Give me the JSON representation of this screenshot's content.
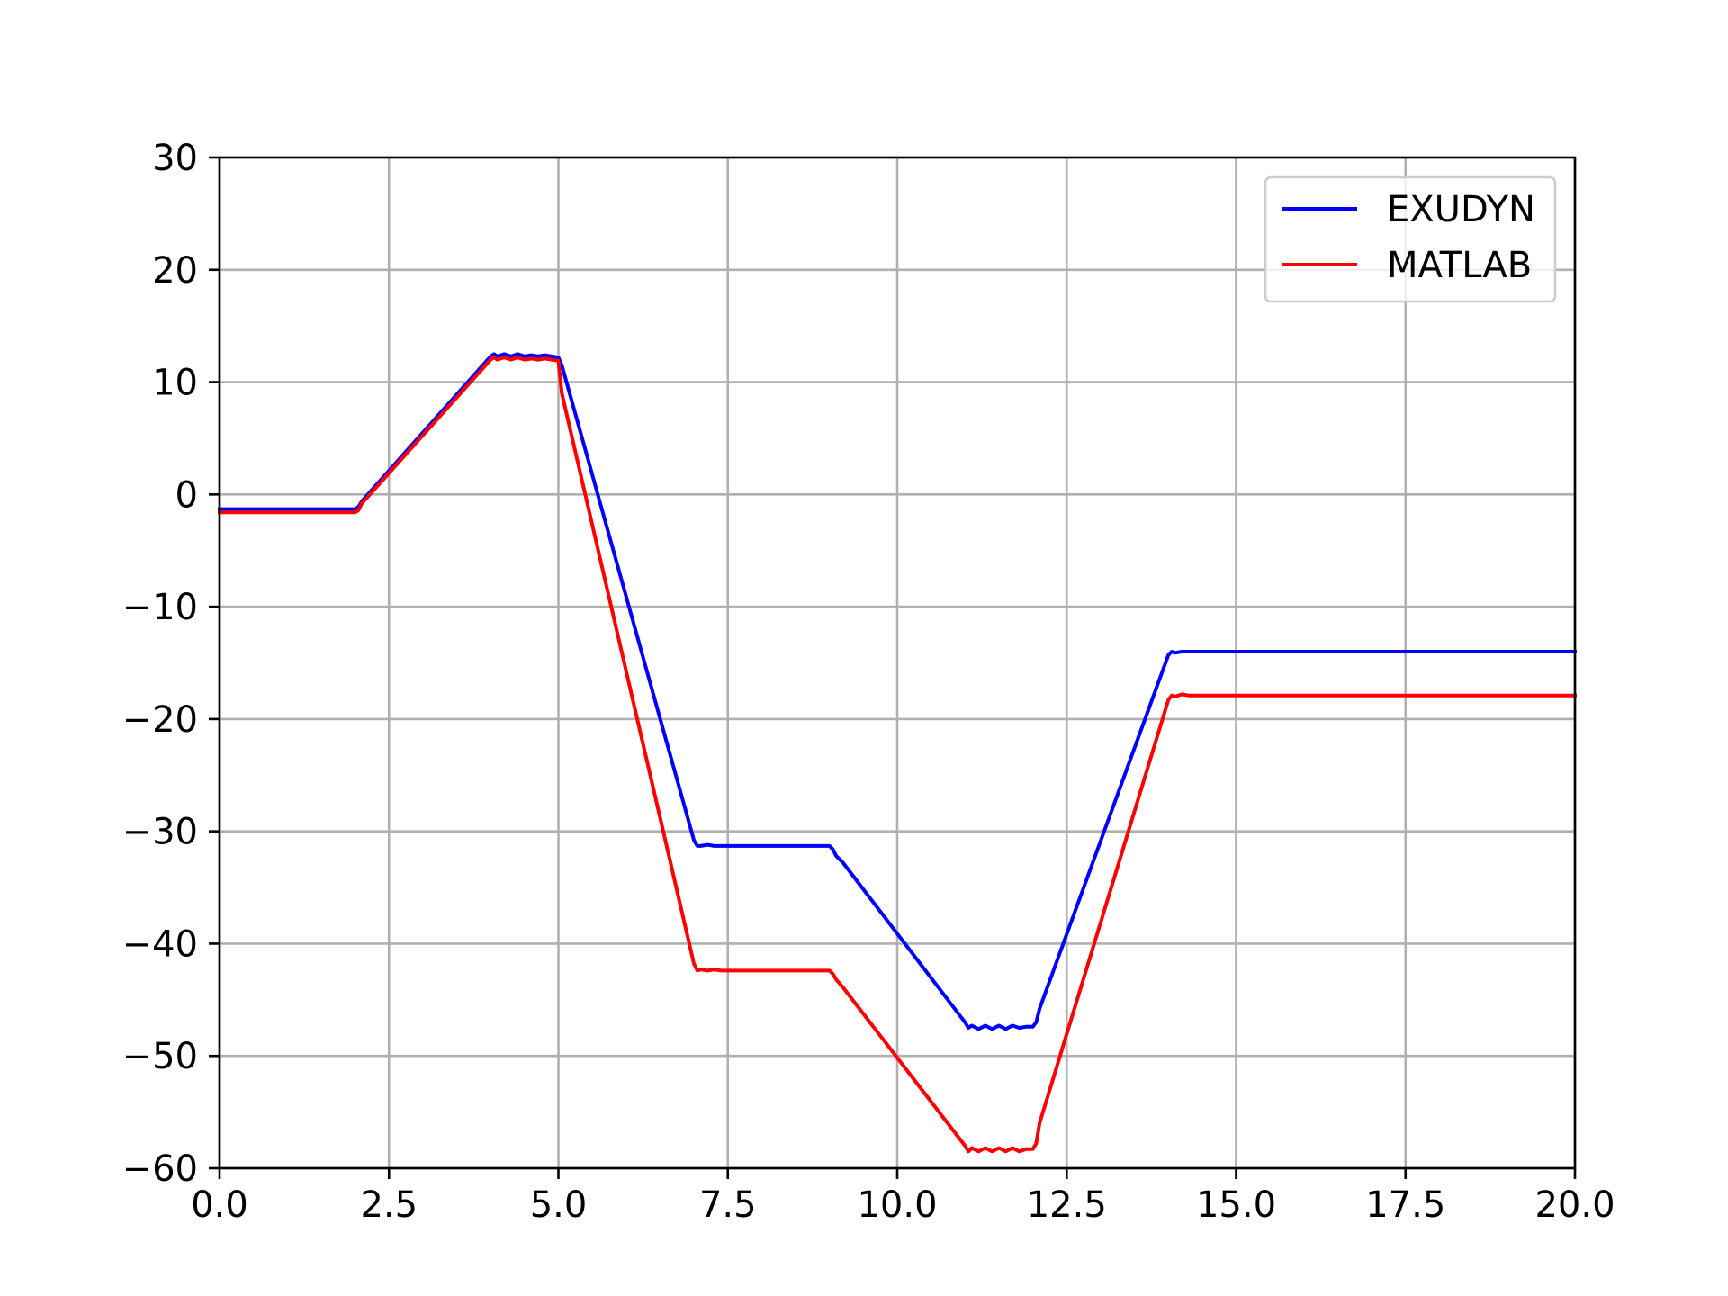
{
  "chart_data": {
    "type": "line",
    "title": "",
    "xlabel": "",
    "ylabel": "",
    "xlim": [
      0,
      20
    ],
    "ylim": [
      -60,
      30
    ],
    "x_ticks": [
      0,
      2.5,
      5,
      7.5,
      10,
      12.5,
      15,
      17.5,
      20
    ],
    "x_tick_labels": [
      "0.0",
      "2.5",
      "5.0",
      "7.5",
      "10.0",
      "12.5",
      "15.0",
      "17.5",
      "20.0"
    ],
    "y_ticks": [
      30,
      20,
      10,
      0,
      -10,
      -20,
      -30,
      -40,
      -50,
      -60
    ],
    "y_tick_labels": [
      "30",
      "20",
      "10",
      "0",
      "−10",
      "−20",
      "−30",
      "−40",
      "−50",
      "−60"
    ],
    "grid": true,
    "legend_position": "upper right",
    "series": [
      {
        "name": "EXUDYN",
        "color": "#0000ff",
        "x": [
          0,
          2.0,
          2.05,
          2.1,
          4.0,
          4.05,
          4.1,
          4.2,
          4.3,
          4.4,
          4.5,
          4.6,
          4.7,
          4.8,
          4.9,
          5.0,
          5.05,
          7.0,
          7.05,
          7.1,
          7.2,
          7.3,
          7.4,
          9.0,
          9.05,
          9.1,
          9.2,
          11.0,
          11.05,
          11.1,
          11.2,
          11.3,
          11.4,
          11.5,
          11.6,
          11.7,
          11.8,
          11.9,
          12.0,
          12.05,
          12.1,
          14.0,
          14.05,
          14.1,
          14.2,
          14.3,
          14.4,
          20.0
        ],
        "y": [
          -1.3,
          -1.3,
          -1.1,
          -0.6,
          12.3,
          12.5,
          12.3,
          12.5,
          12.3,
          12.5,
          12.3,
          12.4,
          12.3,
          12.4,
          12.3,
          12.2,
          11.5,
          -30.8,
          -31.3,
          -31.3,
          -31.2,
          -31.3,
          -31.3,
          -31.3,
          -31.6,
          -32.2,
          -32.8,
          -47.0,
          -47.5,
          -47.3,
          -47.6,
          -47.3,
          -47.6,
          -47.3,
          -47.6,
          -47.3,
          -47.5,
          -47.4,
          -47.4,
          -47.0,
          -45.8,
          -14.3,
          -14.0,
          -14.1,
          -14.0,
          -14.0,
          -14.0,
          -14.0
        ]
      },
      {
        "name": "MATLAB",
        "color": "#ff0000",
        "x": [
          0,
          2.0,
          2.05,
          2.1,
          4.0,
          4.05,
          4.1,
          4.2,
          4.3,
          4.4,
          4.5,
          4.6,
          4.7,
          4.8,
          4.9,
          5.0,
          5.05,
          7.0,
          7.05,
          7.1,
          7.2,
          7.3,
          7.4,
          9.0,
          9.05,
          9.1,
          9.2,
          11.0,
          11.05,
          11.1,
          11.2,
          11.3,
          11.4,
          11.5,
          11.6,
          11.7,
          11.8,
          11.9,
          12.0,
          12.05,
          12.1,
          14.0,
          14.05,
          14.1,
          14.2,
          14.3,
          14.4,
          20.0
        ],
        "y": [
          -1.6,
          -1.6,
          -1.4,
          -0.8,
          12.0,
          12.2,
          12.0,
          12.2,
          12.0,
          12.2,
          12.0,
          12.1,
          12.0,
          12.1,
          12.0,
          11.9,
          9.0,
          -41.8,
          -42.4,
          -42.3,
          -42.4,
          -42.3,
          -42.4,
          -42.4,
          -42.7,
          -43.2,
          -43.9,
          -58.0,
          -58.5,
          -58.2,
          -58.5,
          -58.2,
          -58.5,
          -58.2,
          -58.5,
          -58.2,
          -58.5,
          -58.3,
          -58.3,
          -57.8,
          -56.0,
          -18.3,
          -17.9,
          -18.0,
          -17.8,
          -17.9,
          -17.9,
          -17.9
        ]
      }
    ]
  }
}
